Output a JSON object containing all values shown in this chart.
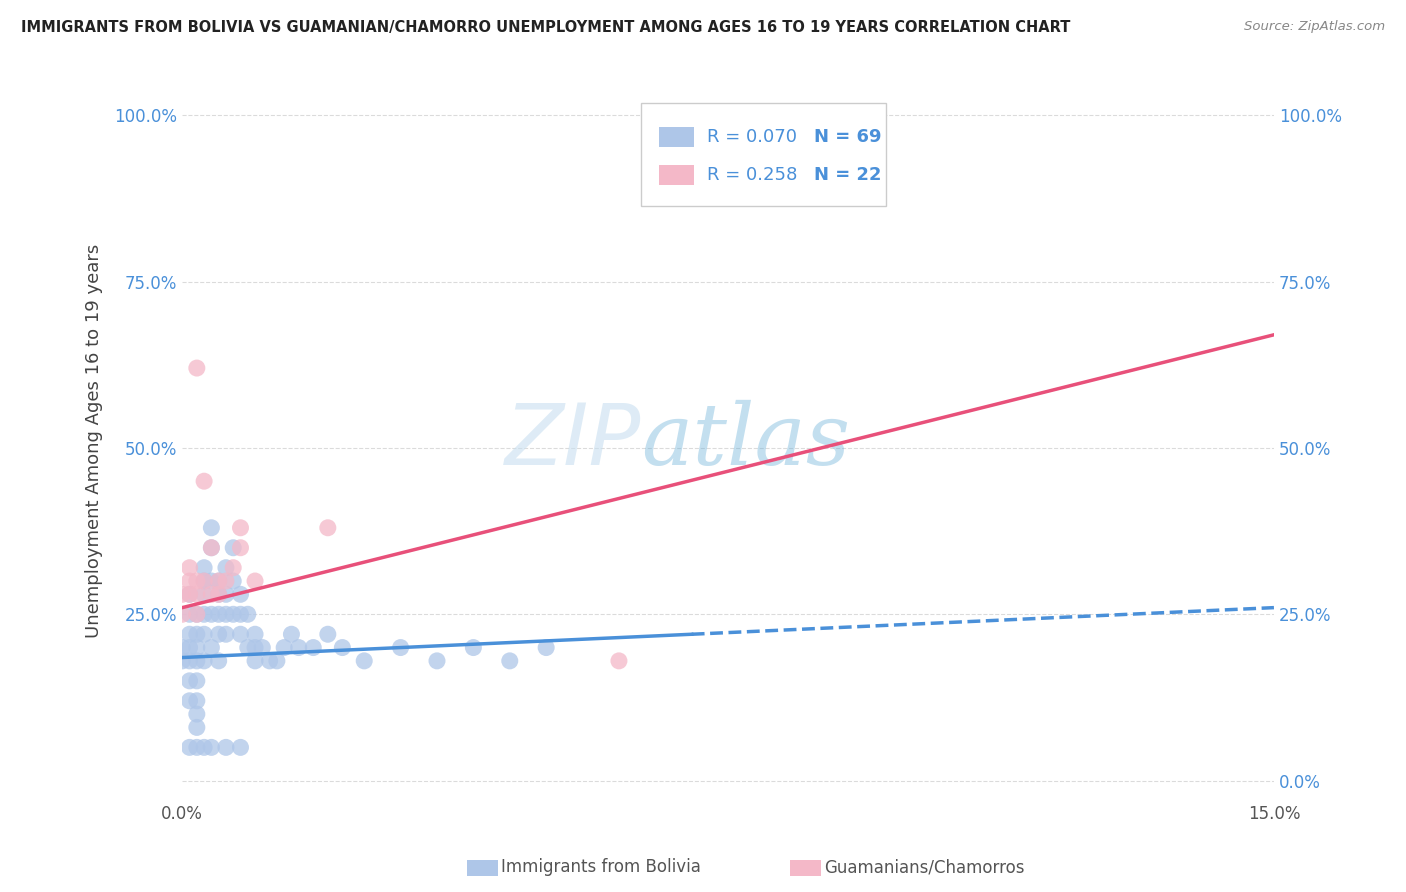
{
  "title": "IMMIGRANTS FROM BOLIVIA VS GUAMANIAN/CHAMORRO UNEMPLOYMENT AMONG AGES 16 TO 19 YEARS CORRELATION CHART",
  "source": "Source: ZipAtlas.com",
  "ylabel": "Unemployment Among Ages 16 to 19 years",
  "xlabel_bolivia": "Immigrants from Bolivia",
  "xlabel_guamanian": "Guamanians/Chamorros",
  "xlim": [
    0.0,
    0.15
  ],
  "ylim": [
    -0.03,
    1.05
  ],
  "ytick_values": [
    0.0,
    0.25,
    0.5,
    0.75,
    1.0
  ],
  "ytick_labels_left": [
    "",
    "25.0%",
    "50.0%",
    "75.0%",
    "100.0%"
  ],
  "ytick_labels_right": [
    "0.0%",
    "25.0%",
    "50.0%",
    "75.0%",
    "100.0%"
  ],
  "xtick_values": [
    0.0,
    0.15
  ],
  "xtick_labels": [
    "0.0%",
    "15.0%"
  ],
  "legend_R_bolivia": "R = 0.070",
  "legend_N_bolivia": "N = 69",
  "legend_R_guamanian": "R = 0.258",
  "legend_N_guamanian": "N = 22",
  "bolivia_color": "#aec6e8",
  "guamanian_color": "#f4b8c8",
  "bolivia_line_color": "#4a90d9",
  "guamanian_line_color": "#e8507a",
  "watermark": "ZIPatlas",
  "background_color": "#ffffff",
  "grid_color": "#cccccc",
  "title_color": "#222222",
  "source_color": "#888888",
  "tick_color": "#4a90d9",
  "ylabel_color": "#444444",
  "legend_box_color": "#cccccc",
  "bolivia_line_solid_end": 0.07,
  "bolivia_line_x0": 0.0,
  "bolivia_line_y0": 0.185,
  "bolivia_line_x1": 0.15,
  "bolivia_line_y1": 0.26,
  "guamanian_line_x0": 0.0,
  "guamanian_line_y0": 0.26,
  "guamanian_line_x1": 0.15,
  "guamanian_line_y1": 0.67
}
